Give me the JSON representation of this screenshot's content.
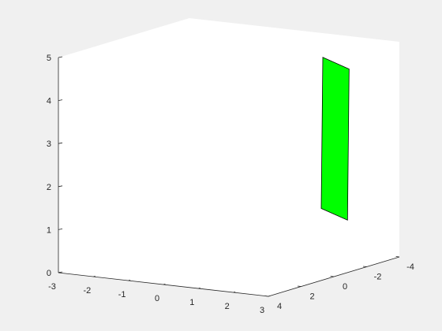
{
  "chart_data": {
    "type": "surface3d",
    "title": "",
    "xlabel": "",
    "ylabel": "",
    "zlabel": "",
    "grid": false,
    "colors": {
      "figure_background": "#f0f0f0",
      "axes_background": "#ffffff",
      "axis_line": "#262626",
      "patch_face": "#00ff00",
      "patch_edge": "#000000"
    },
    "axes": {
      "x": {
        "lim": [
          -3,
          3
        ],
        "ticks": [
          -3,
          -2,
          -1,
          0,
          1,
          2,
          3
        ],
        "tick_labels": [
          "-3",
          "-2",
          "-1",
          "0",
          "1",
          "2",
          "3"
        ]
      },
      "y": {
        "lim": [
          -4,
          4
        ],
        "ticks": [
          -4,
          -2,
          0,
          2,
          4
        ],
        "tick_labels": [
          "-4",
          "-2",
          "0",
          "2",
          "4"
        ]
      },
      "z": {
        "lim": [
          0,
          5
        ],
        "ticks": [
          0,
          1,
          2,
          3,
          4,
          5
        ],
        "tick_labels": [
          "0",
          "1",
          "2",
          "3",
          "4",
          "5"
        ]
      }
    },
    "view": {
      "azimuth": -37.5,
      "elevation": 30
    },
    "patches": [
      {
        "name": "plane",
        "vertices": [
          [
            1.0,
            -3.6,
            4.5
          ],
          [
            2.5,
            -2.0,
            4.55
          ],
          [
            1.0,
            -3.5,
            1.0
          ],
          [
            2.5,
            -1.9,
            1.05
          ]
        ],
        "faces": [
          [
            0,
            1,
            3,
            2
          ]
        ]
      }
    ]
  }
}
